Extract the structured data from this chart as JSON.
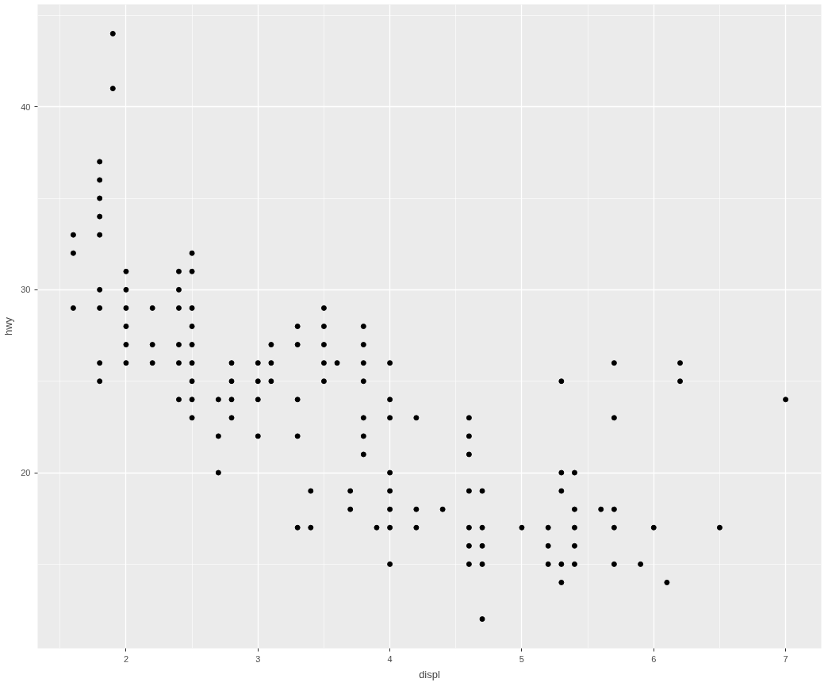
{
  "chart_data": {
    "type": "scatter",
    "xlabel": "displ",
    "ylabel": "hwy",
    "xlim": [
      1.33,
      7.27
    ],
    "ylim": [
      10.4,
      45.6
    ],
    "xticks": [
      2,
      3,
      4,
      5,
      6,
      7
    ],
    "yticks": [
      20,
      30,
      40
    ],
    "grid": true,
    "marker": "circle",
    "series": [
      {
        "color": "#000000",
        "x": [
          1.6,
          1.6,
          1.6,
          1.8,
          1.8,
          1.8,
          1.8,
          1.8,
          1.8,
          1.8,
          1.8,
          1.8,
          1.9,
          1.9,
          2.0,
          2.0,
          2.0,
          2.0,
          2.0,
          2.0,
          2.2,
          2.2,
          2.2,
          2.4,
          2.4,
          2.4,
          2.4,
          2.4,
          2.4,
          2.5,
          2.5,
          2.5,
          2.5,
          2.5,
          2.5,
          2.5,
          2.5,
          2.5,
          2.7,
          2.7,
          2.7,
          2.8,
          2.8,
          2.8,
          2.8,
          3.0,
          3.0,
          3.0,
          3.0,
          3.1,
          3.1,
          3.1,
          3.3,
          3.3,
          3.3,
          3.3,
          3.3,
          3.4,
          3.4,
          3.5,
          3.5,
          3.5,
          3.5,
          3.5,
          3.6,
          3.7,
          3.7,
          3.8,
          3.8,
          3.8,
          3.8,
          3.8,
          3.8,
          3.8,
          3.9,
          4.0,
          4.0,
          4.0,
          4.0,
          4.0,
          4.0,
          4.0,
          4.0,
          4.2,
          4.2,
          4.2,
          4.4,
          4.6,
          4.6,
          4.6,
          4.6,
          4.6,
          4.6,
          4.6,
          4.7,
          4.7,
          4.7,
          4.7,
          4.7,
          5.0,
          5.2,
          5.2,
          5.2,
          5.3,
          5.3,
          5.3,
          5.3,
          5.3,
          5.4,
          5.4,
          5.4,
          5.4,
          5.4,
          5.6,
          5.7,
          5.7,
          5.7,
          5.7,
          5.7,
          5.9,
          6.0,
          6.1,
          6.2,
          6.2,
          6.5,
          7.0
        ],
        "values": [
          33,
          32,
          29,
          37,
          36,
          35,
          34,
          33,
          30,
          29,
          26,
          25,
          44,
          41,
          31,
          30,
          29,
          28,
          27,
          26,
          29,
          27,
          26,
          31,
          30,
          29,
          27,
          26,
          24,
          32,
          31,
          29,
          28,
          27,
          26,
          25,
          24,
          23,
          24,
          22,
          20,
          26,
          25,
          24,
          23,
          26,
          25,
          24,
          22,
          27,
          26,
          25,
          28,
          27,
          24,
          22,
          17,
          19,
          17,
          29,
          28,
          27,
          26,
          25,
          26,
          19,
          18,
          28,
          27,
          26,
          25,
          23,
          22,
          21,
          17,
          26,
          24,
          23,
          20,
          19,
          18,
          17,
          15,
          23,
          18,
          17,
          18,
          23,
          22,
          21,
          19,
          17,
          16,
          15,
          19,
          17,
          16,
          15,
          12,
          17,
          17,
          16,
          15,
          25,
          20,
          19,
          15,
          14,
          20,
          18,
          17,
          16,
          15,
          18,
          26,
          23,
          18,
          17,
          15,
          15,
          17,
          14,
          26,
          25,
          17,
          24
        ]
      }
    ]
  }
}
